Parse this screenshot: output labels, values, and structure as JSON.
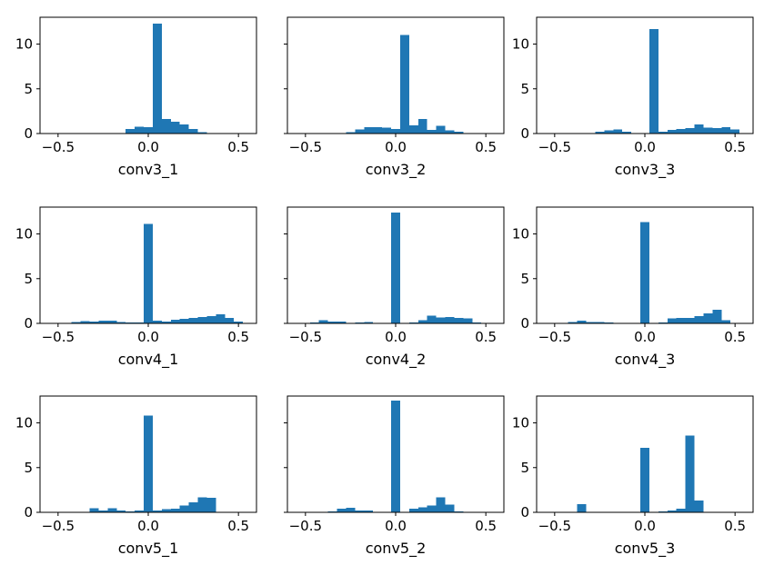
{
  "colors": {
    "bar": "#1f77b4",
    "axis": "#000000"
  },
  "chart_data": [
    {
      "type": "bar",
      "title": "",
      "xlabel": "conv3_1",
      "ylabel": "",
      "xlim": [
        -0.6,
        0.6
      ],
      "ylim": [
        0,
        13
      ],
      "xticks": [
        -0.5,
        0.0,
        0.5
      ],
      "xtick_labels": [
        "−0.5",
        "0.0",
        "0.5"
      ],
      "yticks": [
        0,
        5,
        10
      ],
      "ytick_labels": [
        "0",
        "5",
        "10"
      ],
      "show_ytick_labels": true,
      "bin_start": -0.325,
      "bin_width": 0.05,
      "values": [
        0,
        0,
        0,
        0.05,
        0.5,
        0.75,
        0.7,
        12.3,
        1.6,
        1.3,
        1.0,
        0.5,
        0.15,
        0.05
      ]
    },
    {
      "type": "bar",
      "title": "",
      "xlabel": "conv3_2",
      "ylabel": "",
      "xlim": [
        -0.6,
        0.6
      ],
      "ylim": [
        0,
        13
      ],
      "xticks": [
        -0.5,
        0.0,
        0.5
      ],
      "xtick_labels": [
        "−0.5",
        "0.0",
        "0.5"
      ],
      "yticks": [
        0,
        5,
        10
      ],
      "ytick_labels": [
        "0",
        "5",
        "10"
      ],
      "show_ytick_labels": false,
      "bin_start": -0.325,
      "bin_width": 0.05,
      "values": [
        0,
        0.15,
        0.45,
        0.7,
        0.7,
        0.65,
        0.5,
        11.0,
        0.9,
        1.6,
        0.4,
        0.85,
        0.35,
        0.2
      ]
    },
    {
      "type": "bar",
      "title": "",
      "xlabel": "conv3_3",
      "ylabel": "",
      "xlim": [
        -0.6,
        0.6
      ],
      "ylim": [
        0,
        13
      ],
      "xticks": [
        -0.5,
        0.0,
        0.5
      ],
      "xtick_labels": [
        "−0.5",
        "0.0",
        "0.5"
      ],
      "yticks": [
        0,
        5,
        10
      ],
      "ytick_labels": [
        "0",
        "5",
        "10"
      ],
      "show_ytick_labels": true,
      "bin_start": -0.325,
      "bin_width": 0.05,
      "values": [
        0,
        0.2,
        0.35,
        0.45,
        0.2,
        0.05,
        0,
        11.7,
        0.2,
        0.4,
        0.5,
        0.6,
        1.0,
        0.65,
        0.6,
        0.7,
        0.45,
        0.05
      ]
    },
    {
      "type": "bar",
      "title": "",
      "xlabel": "conv4_1",
      "ylabel": "",
      "xlim": [
        -0.6,
        0.6
      ],
      "ylim": [
        0,
        13
      ],
      "xticks": [
        -0.5,
        0.0,
        0.5
      ],
      "xtick_labels": [
        "−0.5",
        "0.0",
        "0.5"
      ],
      "yticks": [
        0,
        5,
        10
      ],
      "ytick_labels": [
        "0",
        "5",
        "10"
      ],
      "show_ytick_labels": true,
      "bin_start": -0.475,
      "bin_width": 0.05,
      "values": [
        0.05,
        0.15,
        0.25,
        0.2,
        0.3,
        0.3,
        0.15,
        0.1,
        0.1,
        11.1,
        0.3,
        0.2,
        0.4,
        0.5,
        0.6,
        0.7,
        0.8,
        1.0,
        0.6,
        0.2
      ]
    },
    {
      "type": "bar",
      "title": "",
      "xlabel": "conv4_2",
      "ylabel": "",
      "xlim": [
        -0.6,
        0.6
      ],
      "ylim": [
        0,
        13
      ],
      "xticks": [
        -0.5,
        0.0,
        0.5
      ],
      "xtick_labels": [
        "−0.5",
        "0.0",
        "0.5"
      ],
      "yticks": [
        0,
        5,
        10
      ],
      "ytick_labels": [
        "0",
        "5",
        "10"
      ],
      "show_ytick_labels": false,
      "bin_start": -0.475,
      "bin_width": 0.05,
      "values": [
        0.1,
        0.35,
        0.2,
        0.2,
        0.05,
        0.1,
        0.15,
        0.05,
        0.05,
        12.4,
        0.05,
        0.1,
        0.35,
        0.85,
        0.65,
        0.7,
        0.6,
        0.55,
        0.1
      ]
    },
    {
      "type": "bar",
      "title": "",
      "xlabel": "conv4_3",
      "ylabel": "",
      "xlim": [
        -0.6,
        0.6
      ],
      "ylim": [
        0,
        13
      ],
      "xticks": [
        -0.5,
        0.0,
        0.5
      ],
      "xtick_labels": [
        "−0.5",
        "0.0",
        "0.5"
      ],
      "yticks": [
        0,
        5,
        10
      ],
      "ytick_labels": [
        "0",
        "5",
        "10"
      ],
      "show_ytick_labels": true,
      "bin_start": -0.475,
      "bin_width": 0.05,
      "values": [
        0.05,
        0.15,
        0.3,
        0.15,
        0.15,
        0.1,
        0.05,
        0.05,
        0,
        11.3,
        0.05,
        0.1,
        0.55,
        0.6,
        0.6,
        0.8,
        1.1,
        1.5,
        0.35
      ]
    },
    {
      "type": "bar",
      "title": "",
      "xlabel": "conv5_1",
      "ylabel": "",
      "xlim": [
        -0.6,
        0.6
      ],
      "ylim": [
        0,
        13
      ],
      "xticks": [
        -0.5,
        0.0,
        0.5
      ],
      "xtick_labels": [
        "−0.5",
        "0.0",
        "0.5"
      ],
      "yticks": [
        0,
        5,
        10
      ],
      "ytick_labels": [
        "0",
        "5",
        "10"
      ],
      "show_ytick_labels": true,
      "bin_start": -0.475,
      "bin_width": 0.05,
      "values": [
        0,
        0,
        0.05,
        0.45,
        0.2,
        0.45,
        0.2,
        0.1,
        0.2,
        10.8,
        0.2,
        0.35,
        0.4,
        0.75,
        1.1,
        1.7,
        1.6
      ]
    },
    {
      "type": "bar",
      "title": "",
      "xlabel": "conv5_2",
      "ylabel": "",
      "xlim": [
        -0.6,
        0.6
      ],
      "ylim": [
        0,
        13
      ],
      "xticks": [
        -0.5,
        0.0,
        0.5
      ],
      "xtick_labels": [
        "−0.5",
        "0.0",
        "0.5"
      ],
      "yticks": [
        0,
        5,
        10
      ],
      "ytick_labels": [
        "0",
        "5",
        "10"
      ],
      "show_ytick_labels": false,
      "bin_start": -0.475,
      "bin_width": 0.05,
      "values": [
        0,
        0,
        0.1,
        0.4,
        0.5,
        0.2,
        0.2,
        0.05,
        0,
        12.5,
        0.05,
        0.4,
        0.55,
        0.75,
        1.7,
        0.85,
        0.1
      ]
    },
    {
      "type": "bar",
      "title": "",
      "xlabel": "conv5_3",
      "ylabel": "",
      "xlim": [
        -0.6,
        0.6
      ],
      "ylim": [
        0,
        13
      ],
      "xticks": [
        -0.5,
        0.0,
        0.5
      ],
      "xtick_labels": [
        "−0.5",
        "0.0",
        "0.5"
      ],
      "yticks": [
        0,
        5,
        10
      ],
      "ytick_labels": [
        "0",
        "5",
        "10"
      ],
      "show_ytick_labels": true,
      "bin_start": -0.425,
      "bin_width": 0.05,
      "values": [
        0,
        0.9,
        0,
        0,
        0,
        0,
        0,
        0,
        7.2,
        0,
        0.1,
        0.2,
        0.4,
        8.6,
        1.3
      ]
    }
  ]
}
